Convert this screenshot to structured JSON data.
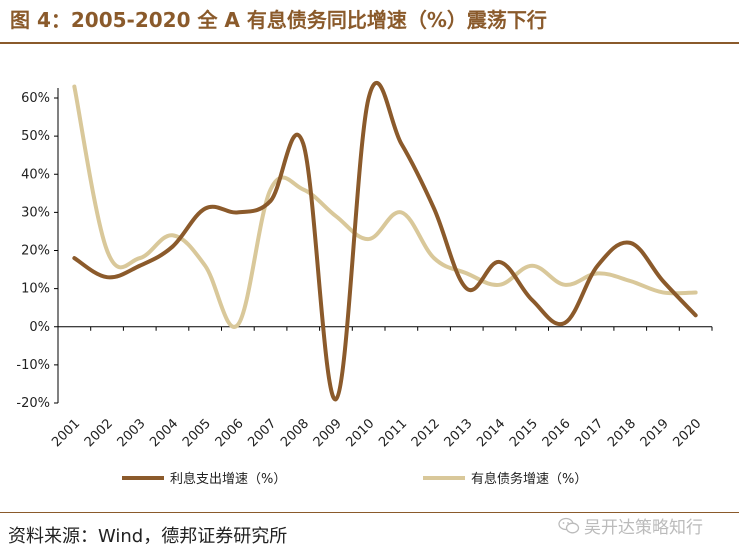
{
  "title": "图 4：2005-2020 全 A 有息债务同比增速（%）震荡下行",
  "source": "资料来源：Wind，德邦证券研究所",
  "watermark": "吴开达策略知行",
  "colors": {
    "brown": "#8a5a2b",
    "series1": "#8b5a2b",
    "series2": "#d9c89a",
    "axis": "#000000"
  },
  "chart_data": {
    "type": "line",
    "title": "2005-2020 全 A 有息债务同比增速（%）震荡下行",
    "categories": [
      "2001",
      "2002",
      "2003",
      "2004",
      "2005",
      "2006",
      "2007",
      "2008",
      "2009",
      "2010",
      "2011",
      "2012",
      "2013",
      "2014",
      "2015",
      "2016",
      "2017",
      "2018",
      "2019",
      "2020"
    ],
    "ylim": [
      -20,
      60
    ],
    "yticks": [
      -20,
      -10,
      0,
      10,
      20,
      30,
      40,
      50,
      60
    ],
    "ytick_labels": [
      "-20%",
      "-10%",
      "0%",
      "10%",
      "20%",
      "30%",
      "40%",
      "50%",
      "60%"
    ],
    "series": [
      {
        "name": "利息支出增速（%）",
        "values": [
          18,
          13,
          16,
          21,
          31,
          30,
          33,
          48,
          -19,
          60,
          48,
          31,
          10,
          17,
          7,
          1,
          16,
          22,
          12,
          3
        ]
      },
      {
        "name": "有息债务增速（%）",
        "values": [
          63,
          20,
          18,
          24,
          16,
          0.5,
          36,
          36,
          29,
          23,
          30,
          18,
          14,
          11,
          16,
          11,
          14,
          12,
          9,
          9
        ]
      }
    ],
    "legend_position": "bottom",
    "grid": false
  }
}
